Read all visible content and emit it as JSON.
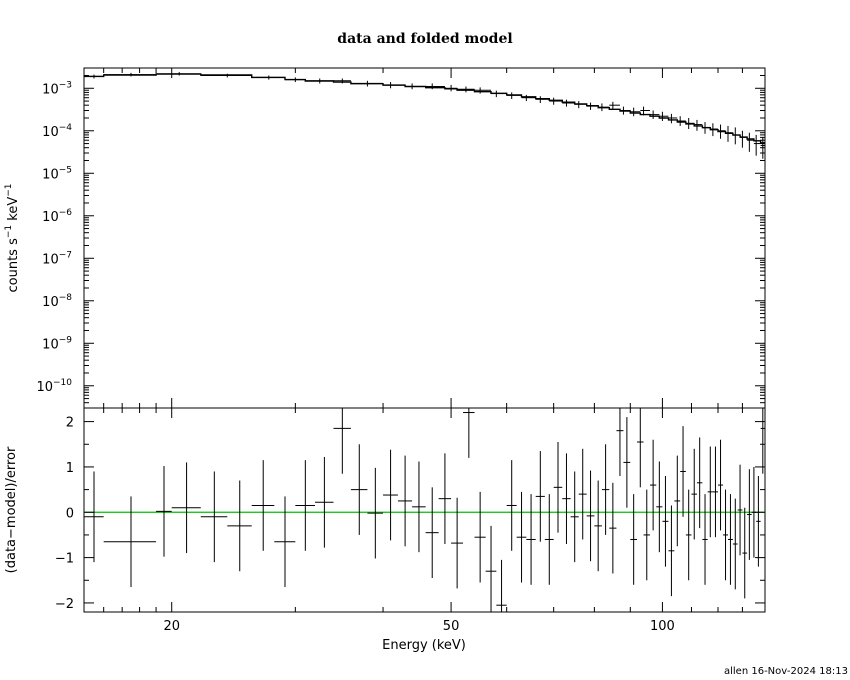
{
  "title": "data and folded model",
  "footer": "allen 16-Nov-2024 18:13",
  "chart_data": [
    {
      "type": "scatter",
      "title": "data and folded model",
      "xlabel": "",
      "ylabel_base": "counts s",
      "ylabel_mid": " keV",
      "ylabel_exp": "−1",
      "xscale": "log",
      "yscale": "log",
      "xlim": [
        15,
        140
      ],
      "ylim": [
        3e-11,
        0.003
      ],
      "ytick_exponents": [
        "−3",
        "−4",
        "−5",
        "−6",
        "−7",
        "−8",
        "−9",
        "−10"
      ],
      "ytick_values": [
        0.001,
        0.0001,
        1e-05,
        1e-06,
        1e-07,
        1e-08,
        1e-09,
        1e-10
      ],
      "series": [
        {
          "kind": "data",
          "x": [
            15.5,
            17.5,
            20.5,
            24,
            27.5,
            30,
            32.5,
            35,
            38,
            41,
            44,
            47,
            50,
            52.5,
            55,
            58,
            61,
            64,
            67,
            70,
            73,
            76,
            79,
            82,
            85,
            88,
            91,
            94,
            97,
            100,
            103,
            106,
            109,
            112,
            115,
            118,
            121,
            124,
            127,
            130,
            133,
            136,
            139
          ],
          "xlo": [
            15,
            16,
            19,
            22,
            26,
            29,
            31,
            34,
            36,
            40,
            43,
            46,
            49,
            51,
            54,
            57,
            60,
            63,
            66,
            69,
            72,
            75,
            78,
            81,
            84,
            87,
            90,
            93,
            96,
            99,
            102,
            105,
            108,
            111,
            114,
            117,
            120,
            123,
            126,
            129,
            132,
            135,
            138
          ],
          "xhi": [
            16,
            19,
            22,
            26,
            29,
            31,
            34,
            36,
            40,
            43,
            46,
            49,
            51,
            54,
            57,
            60,
            63,
            66,
            69,
            72,
            75,
            78,
            81,
            84,
            87,
            90,
            93,
            96,
            99,
            102,
            105,
            108,
            111,
            114,
            117,
            120,
            123,
            126,
            129,
            132,
            135,
            138,
            140
          ],
          "y": [
            0.0019,
            0.0021,
            0.0022,
            0.002,
            0.0018,
            0.0016,
            0.0015,
            0.0015,
            0.0013,
            0.0012,
            0.0011,
            0.0011,
            0.001,
            0.00095,
            0.0009,
            0.00075,
            0.00068,
            0.0006,
            0.00055,
            0.0005,
            0.00045,
            0.00042,
            0.00038,
            0.00036,
            0.0004,
            0.0003,
            0.00028,
            0.0003,
            0.00024,
            0.00022,
            0.0002,
            0.00017,
            0.00015,
            0.00014,
            0.00012,
            0.00011,
            0.0001,
            9e-05,
            8e-05,
            7e-05,
            6e-05,
            5e-05,
            4.5e-05
          ],
          "ylo": [
            0.0017,
            0.0019,
            0.002,
            0.0018,
            0.0016,
            0.0014,
            0.0013,
            0.0013,
            0.0011,
            0.001,
            0.00095,
            0.00095,
            0.00085,
            0.0008,
            0.00075,
            0.00062,
            0.00056,
            0.0005,
            0.00045,
            0.00041,
            0.00037,
            0.00034,
            0.00031,
            0.00029,
            0.00032,
            0.00024,
            0.00022,
            0.00023,
            0.00019,
            0.00017,
            0.00015,
            0.00013,
            0.00011,
            0.0001,
            8.5e-05,
            7.5e-05,
            6.5e-05,
            5.5e-05,
            4.8e-05,
            4e-05,
            3.2e-05,
            2.6e-05,
            2.2e-05
          ],
          "yhi": [
            0.0021,
            0.0023,
            0.0024,
            0.0022,
            0.002,
            0.0018,
            0.0017,
            0.0017,
            0.0015,
            0.0014,
            0.0013,
            0.0013,
            0.0012,
            0.0011,
            0.00105,
            0.00088,
            0.0008,
            0.0007,
            0.00065,
            0.0006,
            0.00054,
            0.0005,
            0.00046,
            0.00044,
            0.00048,
            0.00037,
            0.00035,
            0.00037,
            0.0003,
            0.00028,
            0.00025,
            0.00022,
            0.0002,
            0.00018,
            0.00016,
            0.00015,
            0.00014,
            0.00013,
            0.00012,
            0.0001,
            9e-05,
            8e-05,
            7e-05
          ]
        },
        {
          "kind": "model",
          "x": [
            15,
            16,
            19,
            22,
            26,
            29,
            31,
            34,
            36,
            40,
            43,
            46,
            49,
            51,
            54,
            57,
            60,
            63,
            66,
            69,
            72,
            75,
            78,
            81,
            84,
            87,
            90,
            93,
            96,
            99,
            102,
            105,
            108,
            111,
            114,
            117,
            120,
            123,
            126,
            129,
            132,
            135,
            138,
            140
          ],
          "y": [
            0.0019,
            0.00205,
            0.00215,
            0.00205,
            0.0018,
            0.0016,
            0.00148,
            0.0014,
            0.00128,
            0.00118,
            0.0011,
            0.00103,
            0.00097,
            0.0009,
            0.00083,
            0.00076,
            0.0007,
            0.00063,
            0.00057,
            0.00052,
            0.00047,
            0.00043,
            0.00039,
            0.00035,
            0.00032,
            0.00029,
            0.00026,
            0.00024,
            0.00022,
            0.0002,
            0.00018,
            0.00016,
            0.000145,
            0.00013,
            0.000118,
            0.000106,
            9.6e-05,
            8.7e-05,
            7.9e-05,
            7.1e-05,
            6.4e-05,
            5.8e-05,
            5.2e-05,
            4.8e-05
          ]
        }
      ]
    },
    {
      "type": "scatter",
      "xlabel": "Energy (keV)",
      "ylabel": "(data−model)/error",
      "xscale": "log",
      "xlim": [
        15,
        140
      ],
      "ylim": [
        -2.2,
        2.3
      ],
      "xtick_labels": [
        "20",
        "50",
        "100"
      ],
      "xtick_values": [
        20,
        50,
        100
      ],
      "ytick_labels": [
        "2",
        "1",
        "0",
        "−1",
        "−2"
      ],
      "ytick_values": [
        2,
        1,
        0,
        -1,
        -2
      ],
      "zero_line_color": "#00c000",
      "series": [
        {
          "kind": "residuals",
          "x": [
            15.5,
            17.5,
            19.5,
            21,
            23,
            25,
            27,
            29,
            31,
            33,
            35,
            37,
            39,
            41,
            43,
            45,
            47,
            49,
            51,
            53,
            55,
            57,
            59,
            61,
            63,
            65,
            67,
            69,
            71,
            73,
            75,
            77,
            79,
            81,
            83,
            85,
            87,
            89,
            91,
            93,
            95,
            97,
            99,
            101,
            103,
            105,
            107,
            109,
            111,
            113,
            115,
            117,
            119,
            121,
            123,
            125,
            127,
            129,
            131,
            133,
            135,
            137,
            139
          ],
          "xlo": [
            15,
            16,
            19,
            20,
            22,
            24,
            26,
            28,
            30,
            32,
            34,
            36,
            38,
            40,
            42,
            44,
            46,
            48,
            50,
            52,
            54,
            56,
            58,
            60,
            62,
            64,
            66,
            68,
            70,
            72,
            74,
            76,
            78,
            80,
            82,
            84,
            86,
            88,
            90,
            92,
            94,
            96,
            98,
            100,
            102,
            104,
            106,
            108,
            110,
            112,
            114,
            116,
            118,
            120,
            122,
            124,
            126,
            128,
            130,
            132,
            134,
            136,
            138
          ],
          "xhi": [
            16,
            19,
            20,
            22,
            24,
            26,
            28,
            30,
            32,
            34,
            36,
            38,
            40,
            42,
            44,
            46,
            48,
            50,
            52,
            54,
            56,
            58,
            60,
            62,
            64,
            66,
            68,
            70,
            72,
            74,
            76,
            78,
            80,
            82,
            84,
            86,
            88,
            90,
            92,
            94,
            96,
            98,
            100,
            102,
            104,
            106,
            108,
            110,
            112,
            114,
            116,
            118,
            120,
            122,
            124,
            126,
            128,
            130,
            132,
            134,
            136,
            138,
            140
          ],
          "y": [
            -0.1,
            -0.65,
            0.02,
            0.1,
            -0.1,
            -0.3,
            0.15,
            -0.65,
            0.15,
            0.22,
            1.85,
            0.5,
            -0.02,
            0.38,
            0.25,
            0.12,
            -0.45,
            0.3,
            -0.68,
            2.2,
            -0.55,
            -1.3,
            -2.05,
            0.15,
            -0.55,
            -0.6,
            0.35,
            -0.6,
            0.55,
            0.3,
            -0.1,
            0.4,
            -0.08,
            -0.3,
            0.5,
            -0.35,
            1.8,
            1.1,
            -0.6,
            1.55,
            -0.5,
            0.6,
            0.12,
            -0.2,
            -0.85,
            0.25,
            0.9,
            -0.5,
            0.4,
            0.65,
            -0.6,
            0.45,
            0.45,
            0.6,
            -0.5,
            -0.6,
            -0.7,
            0.05,
            -0.9,
            -0.05,
            0.0,
            -0.2,
            1.85
          ],
          "err": [
            1,
            1,
            1,
            1,
            1,
            1,
            1,
            1,
            1,
            1,
            1,
            1,
            1,
            1,
            1,
            1,
            1,
            1,
            1,
            1,
            1,
            1,
            1,
            1,
            1,
            1,
            1,
            1,
            1,
            1,
            1,
            1,
            1,
            1,
            1,
            1,
            1,
            1,
            1,
            1,
            1,
            1,
            1,
            1,
            1,
            1,
            1,
            1,
            1,
            1,
            1,
            1,
            1,
            1,
            1,
            1,
            1,
            1,
            1,
            1,
            1,
            1,
            1
          ]
        }
      ]
    }
  ]
}
